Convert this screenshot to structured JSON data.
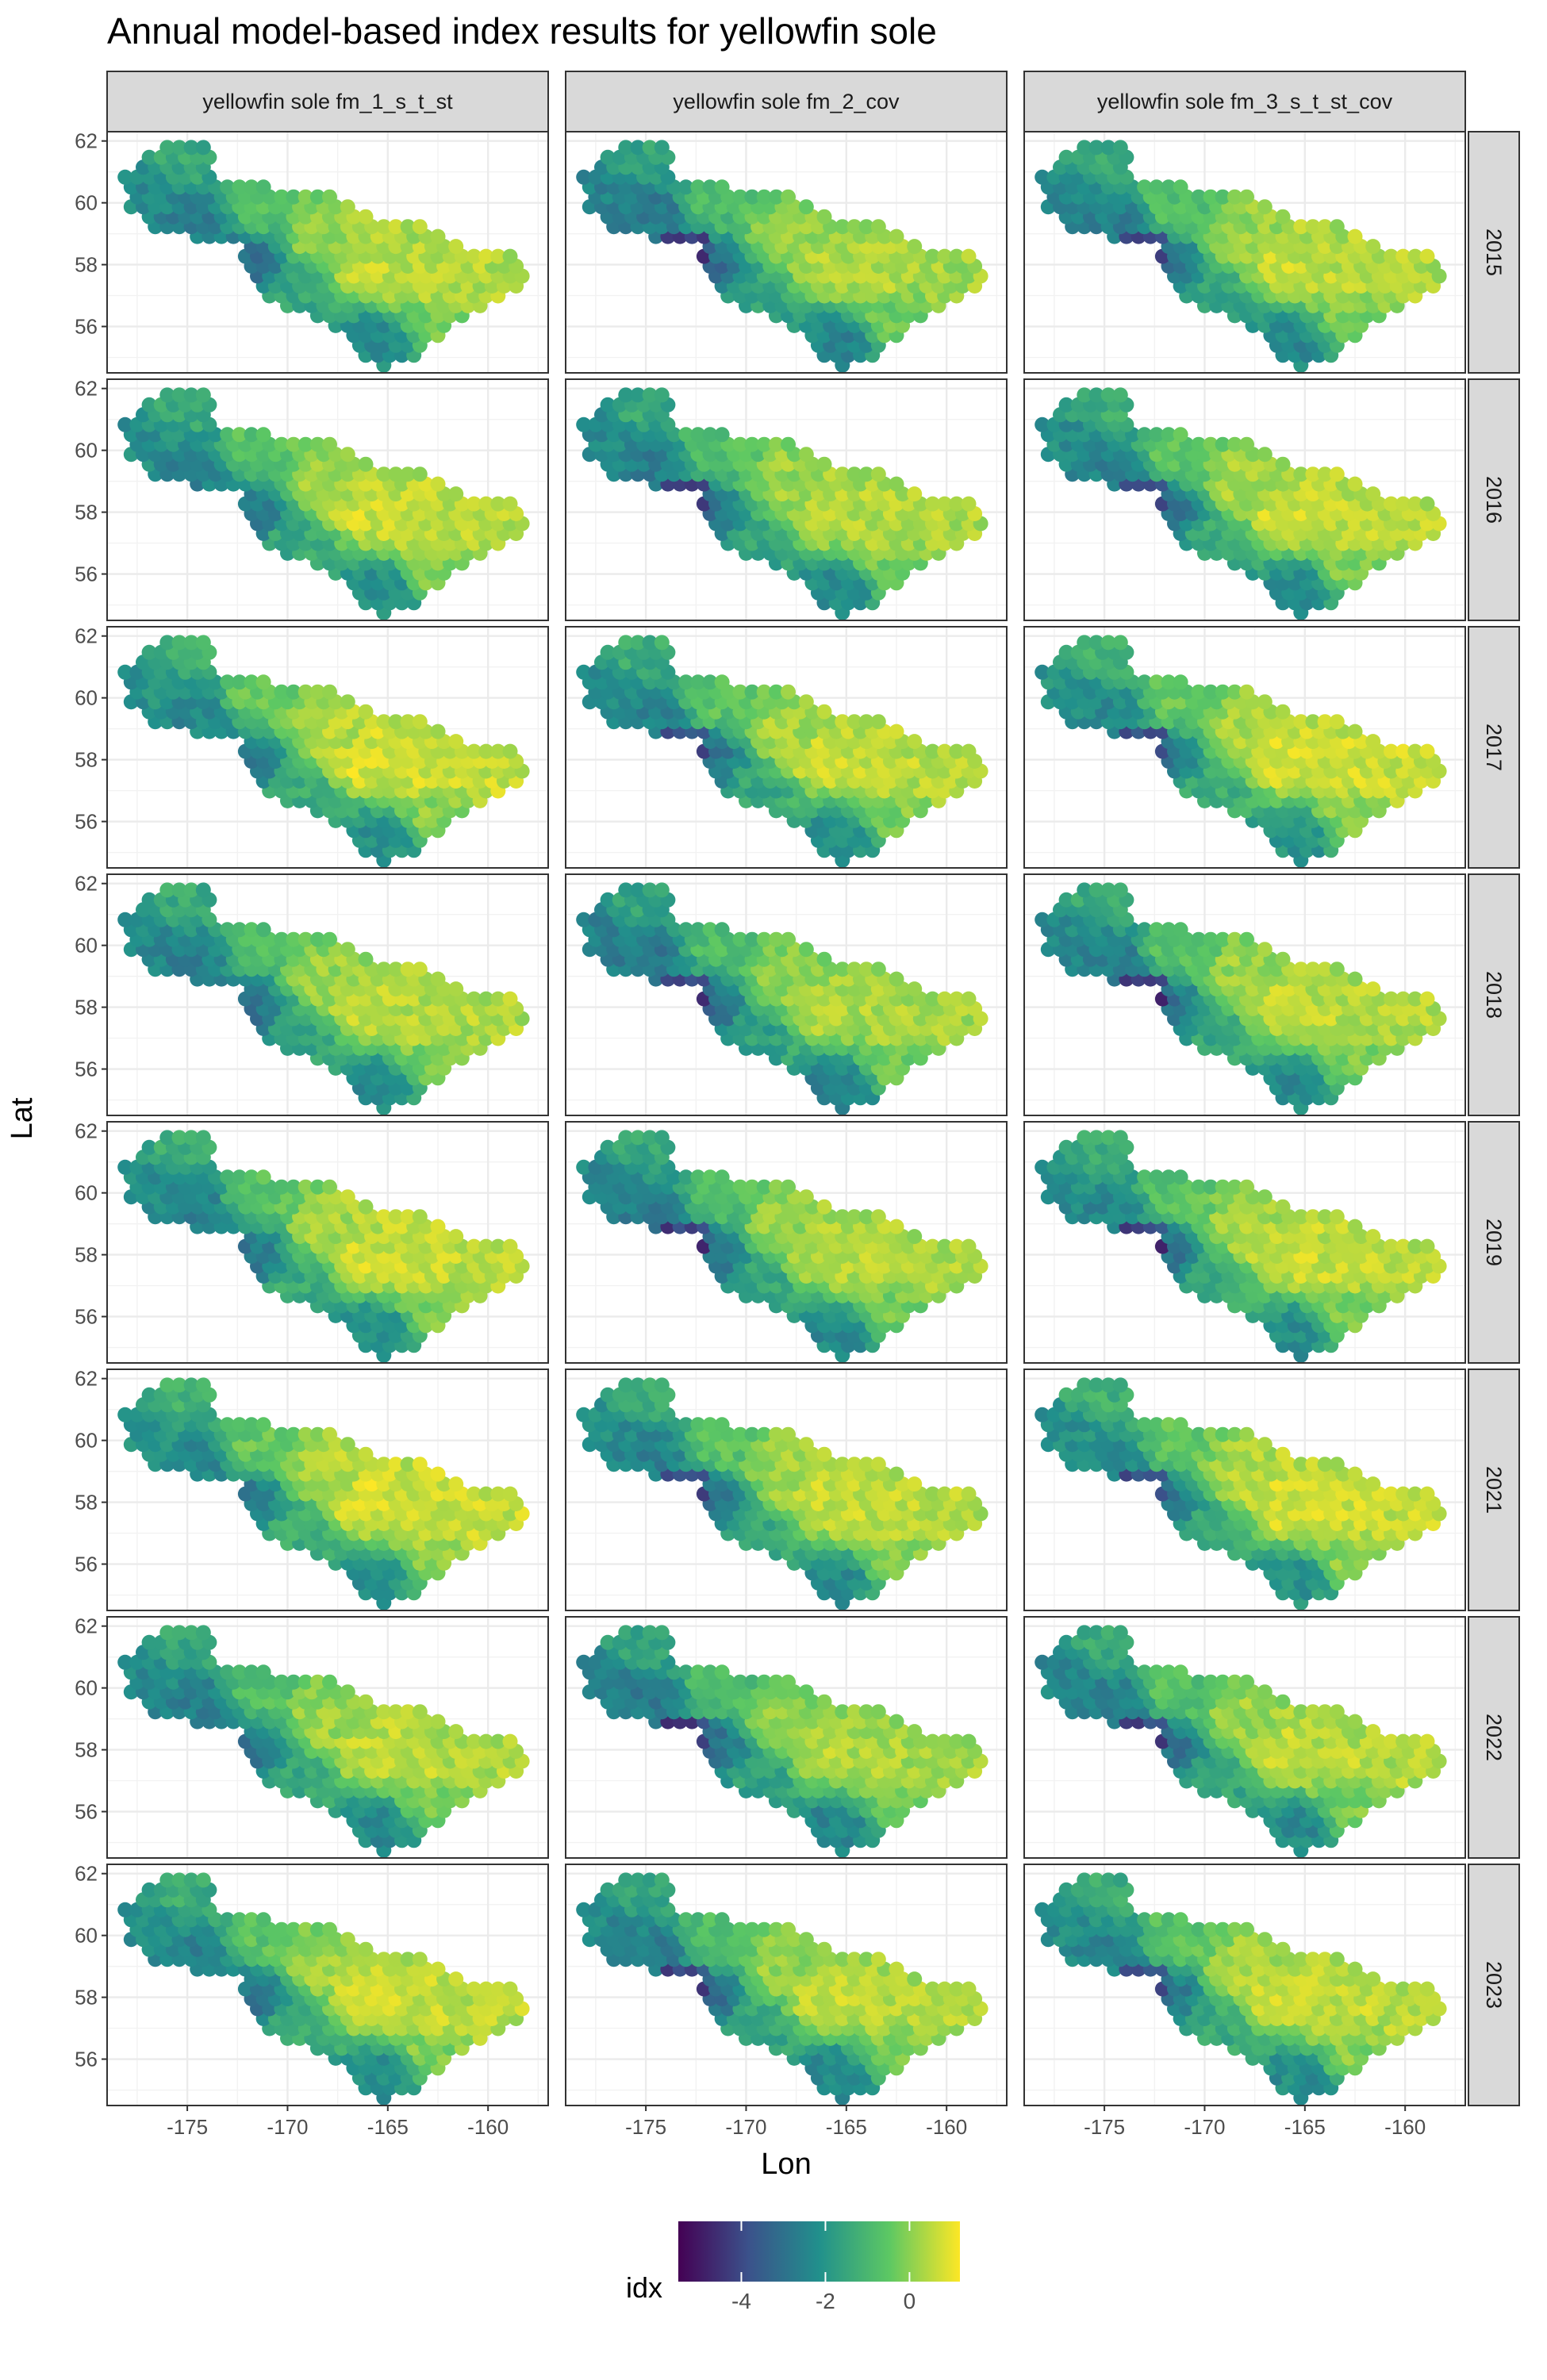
{
  "chart_data": {
    "type": "scatter",
    "title": "Annual model-based index results for yellowfin sole",
    "xlabel": "Lon",
    "ylabel": "Lat",
    "xlim": [
      -179,
      -157
    ],
    "ylim": [
      54.5,
      62.3
    ],
    "x_ticks": [
      -175,
      -170,
      -165,
      -160
    ],
    "x_tick_labels": [
      "-175",
      "-170",
      "-165",
      "-160"
    ],
    "y_ticks": [
      56,
      58,
      60,
      62
    ],
    "y_tick_labels": [
      "56",
      "58",
      "60",
      "62"
    ],
    "grid": true,
    "facet_columns": [
      "yellowfin sole fm_1_s_t_st",
      "yellowfin sole fm_2_cov",
      "yellowfin sole fm_3_s_t_st_cov"
    ],
    "facet_rows": [
      "2015",
      "2016",
      "2017",
      "2018",
      "2019",
      "2021",
      "2022",
      "2023"
    ],
    "color_scale": {
      "name": "idx",
      "palette": "viridis",
      "range": [
        -5.5,
        1.2
      ],
      "ticks": [
        -4,
        -2,
        0
      ],
      "tick_labels": [
        "-4",
        "-2",
        "0"
      ],
      "colors": [
        "#440154",
        "#3b528b",
        "#21908c",
        "#5dc863",
        "#fde725"
      ]
    },
    "legend_position": "bottom",
    "survey_area_outline": [
      [
        -178.2,
        60.8
      ],
      [
        -176.8,
        61.6
      ],
      [
        -175.6,
        62.0
      ],
      [
        -174.1,
        62.0
      ],
      [
        -173.5,
        60.6
      ],
      [
        -168.0,
        60.4
      ],
      [
        -166.0,
        59.6
      ],
      [
        -163.0,
        59.2
      ],
      [
        -161.5,
        58.6
      ],
      [
        -158.3,
        58.2
      ],
      [
        -158.1,
        57.5
      ],
      [
        -160.2,
        56.6
      ],
      [
        -162.2,
        55.8
      ],
      [
        -163.6,
        55.0
      ],
      [
        -165.1,
        54.7
      ],
      [
        -166.0,
        55.0
      ],
      [
        -167.3,
        55.9
      ],
      [
        -169.8,
        56.6
      ],
      [
        -171.6,
        57.2
      ],
      [
        -172.3,
        58.6
      ],
      [
        -173.5,
        58.8
      ],
      [
        -176.2,
        59.0
      ],
      [
        -178.0,
        59.8
      ]
    ],
    "idx_anchors": [
      {
        "lon": -177.0,
        "lat": 60.5,
        "idx": -2.2
      },
      {
        "lon": -175.5,
        "lat": 61.5,
        "idx": -1.3
      },
      {
        "lon": -174.5,
        "lat": 59.5,
        "idx": -2.5
      },
      {
        "lon": -172.0,
        "lat": 58.0,
        "idx": -2.8
      },
      {
        "lon": -171.5,
        "lat": 60.0,
        "idx": -0.6
      },
      {
        "lon": -169.5,
        "lat": 57.0,
        "idx": -1.4
      },
      {
        "lon": -168.0,
        "lat": 59.0,
        "idx": 0.3
      },
      {
        "lon": -166.0,
        "lat": 58.0,
        "idx": 0.7
      },
      {
        "lon": -165.5,
        "lat": 55.5,
        "idx": -2.2
      },
      {
        "lon": -163.0,
        "lat": 57.5,
        "idx": 0.6
      },
      {
        "lon": -160.0,
        "lat": 57.5,
        "idx": 0.5
      },
      {
        "lon": -162.5,
        "lat": 56.3,
        "idx": -0.1
      }
    ]
  }
}
